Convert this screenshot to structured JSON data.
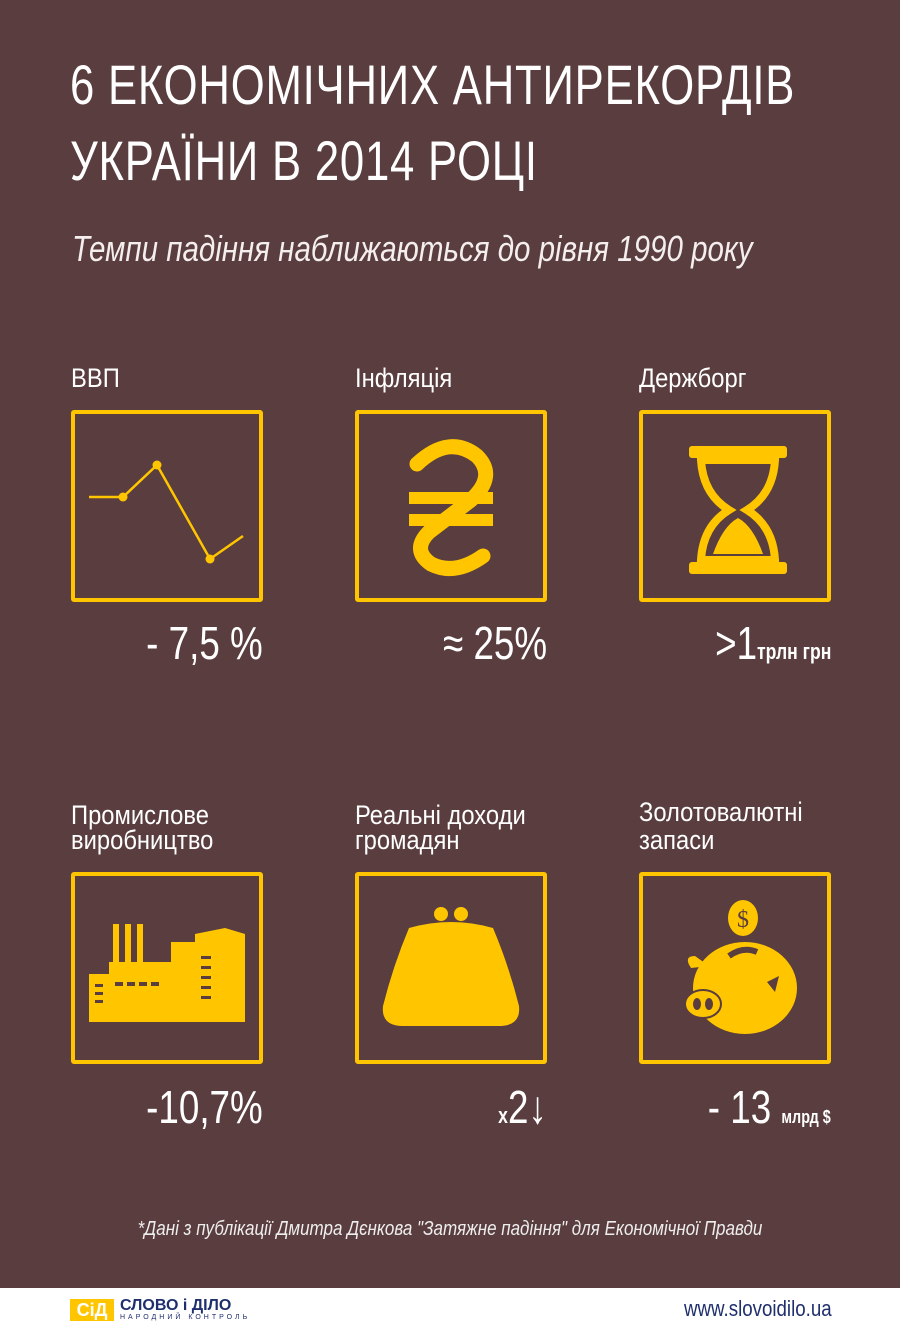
{
  "title_line1": "6 ЕКОНОМІЧНИХ АНТИРЕКОРДІВ",
  "title_line2": "УКРАЇНИ В 2014 РОЦІ",
  "subtitle": "Темпи падіння наближаються до рівня 1990 року",
  "accent_color": "#ffc600",
  "background_color": "#5a3d3e",
  "indicators": [
    {
      "label": "ВВП",
      "value": "- 7,5 %",
      "unit": "",
      "icon": "line-chart-icon"
    },
    {
      "label": "Інфляція",
      "value": "≈ 25%",
      "unit": "",
      "icon": "hryvnia-icon"
    },
    {
      "label": "Держборг",
      "value": ">1",
      "unit": "трлн грн",
      "icon": "hourglass-icon"
    },
    {
      "label_line1": "Промислове",
      "label_line2": "виробництво",
      "value": "-10,7%",
      "unit": "",
      "icon": "factory-icon"
    },
    {
      "label_line1": "Реальні доходи",
      "label_line2": "громадян",
      "value_prefix": "x",
      "value": "2↓",
      "unit": "",
      "icon": "purse-icon"
    },
    {
      "label_line1": "Золотовалютні",
      "label_line2": "запаси",
      "value": "- 13",
      "unit": "млрд $",
      "icon": "piggy-bank-icon"
    }
  ],
  "footnote": "*Дані з публікації Дмитра Дєнкова \"Затяжне падіння\" для Економічної Правди",
  "footer": {
    "logo_mark": "СіД",
    "logo_name": "СЛОВО і ДІЛО",
    "logo_tagline": "НАРОДНИЙ КОНТРОЛЬ",
    "url": "www.slovoidilo.ua"
  }
}
